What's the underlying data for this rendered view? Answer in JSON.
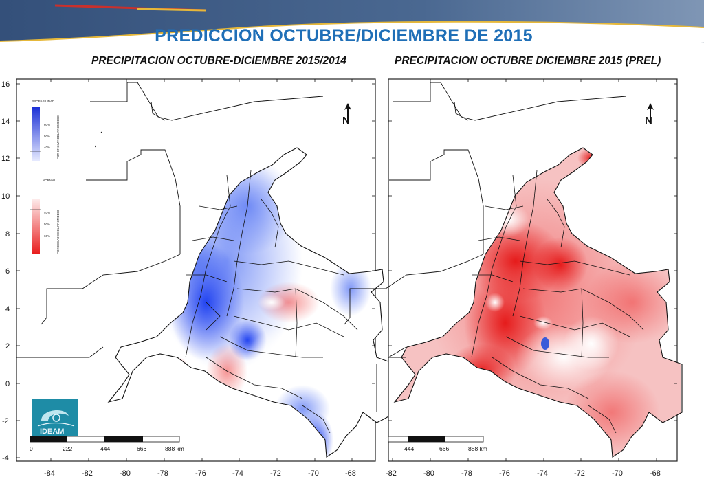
{
  "title": "PREDICCION OCTUBRE/DICIEMBRE DE 2015",
  "maps": [
    {
      "subtitle": "PRECIPITACION OCTUBRE-DICIEMBRE 2015/2014",
      "scheme": "blue-dominant",
      "legend": {
        "above_title": "PROBABILIDAD",
        "above_axis": "POR ENCIMA DEL PROMEDIO",
        "above_ticks": [
          "60%",
          "50%",
          "40%"
        ],
        "normal_title": "NORMAL",
        "below_axis": "POR DEBAJO DEL PROMEDIO",
        "below_ticks": [
          "40%",
          "50%",
          "60%"
        ]
      },
      "scale_labels": [
        "0",
        "222",
        "444",
        "666",
        "888 km"
      ],
      "logo_text": "IDEAM"
    },
    {
      "subtitle": "PRECIPITACION OCTUBRE DICIEMBRE 2015 (PREL)",
      "scheme": "red-dominant",
      "scale_labels": [
        "444",
        "666",
        "888 km"
      ]
    }
  ],
  "x_ticks": [
    "-84",
    "-82",
    "-80",
    "-78",
    "-76",
    "-74",
    "-72",
    "-70",
    "-68"
  ],
  "y_ticks": [
    "16",
    "14",
    "12",
    "10",
    "8",
    "6",
    "4",
    "2",
    "0",
    "-2",
    "-4"
  ],
  "north_arrow_label": "N",
  "colors": {
    "title": "#1f6fb7",
    "above_average": "#1a3df0",
    "below_average": "#ee1a1a",
    "banner": "#3f5a82",
    "banner_stripe_red": "#c9302c",
    "banner_stripe_gold": "#e6b83a"
  }
}
